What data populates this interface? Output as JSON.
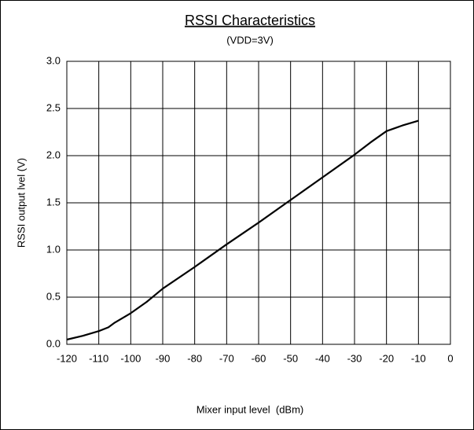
{
  "chart_data": {
    "type": "line",
    "title": "RSSI Characteristics",
    "subtitle": "(VDD=3V)",
    "x_label": "Mixer input level  (dBm)",
    "y_label": "RSSI output lvel (V)",
    "x": [
      -120,
      -115,
      -110,
      -107,
      -105,
      -100,
      -95,
      -90,
      -80,
      -70,
      -60,
      -50,
      -40,
      -30,
      -25,
      -20,
      -15,
      -10
    ],
    "series": [
      {
        "color": "#000000",
        "values": [
          0.05,
          0.09,
          0.14,
          0.18,
          0.23,
          0.33,
          0.45,
          0.59,
          0.82,
          1.06,
          1.29,
          1.53,
          1.77,
          2.01,
          2.14,
          2.26,
          2.32,
          2.37
        ]
      }
    ],
    "xlim": [
      -120,
      0
    ],
    "xticks": [
      -120,
      -110,
      -100,
      -90,
      -80,
      -70,
      -60,
      -50,
      -40,
      -30,
      -20,
      -10,
      0
    ],
    "ylim": [
      0,
      3
    ],
    "yticks": [
      {
        "value": 0,
        "label": "0.0"
      },
      {
        "value": 0.5,
        "label": "0.5"
      },
      {
        "value": 1,
        "label": "1.0"
      },
      {
        "value": 1.5,
        "label": "1.5"
      },
      {
        "value": 2,
        "label": "2.0"
      },
      {
        "value": 2.5,
        "label": "2.5"
      },
      {
        "value": 3,
        "label": "3.0"
      }
    ],
    "grid": true
  }
}
